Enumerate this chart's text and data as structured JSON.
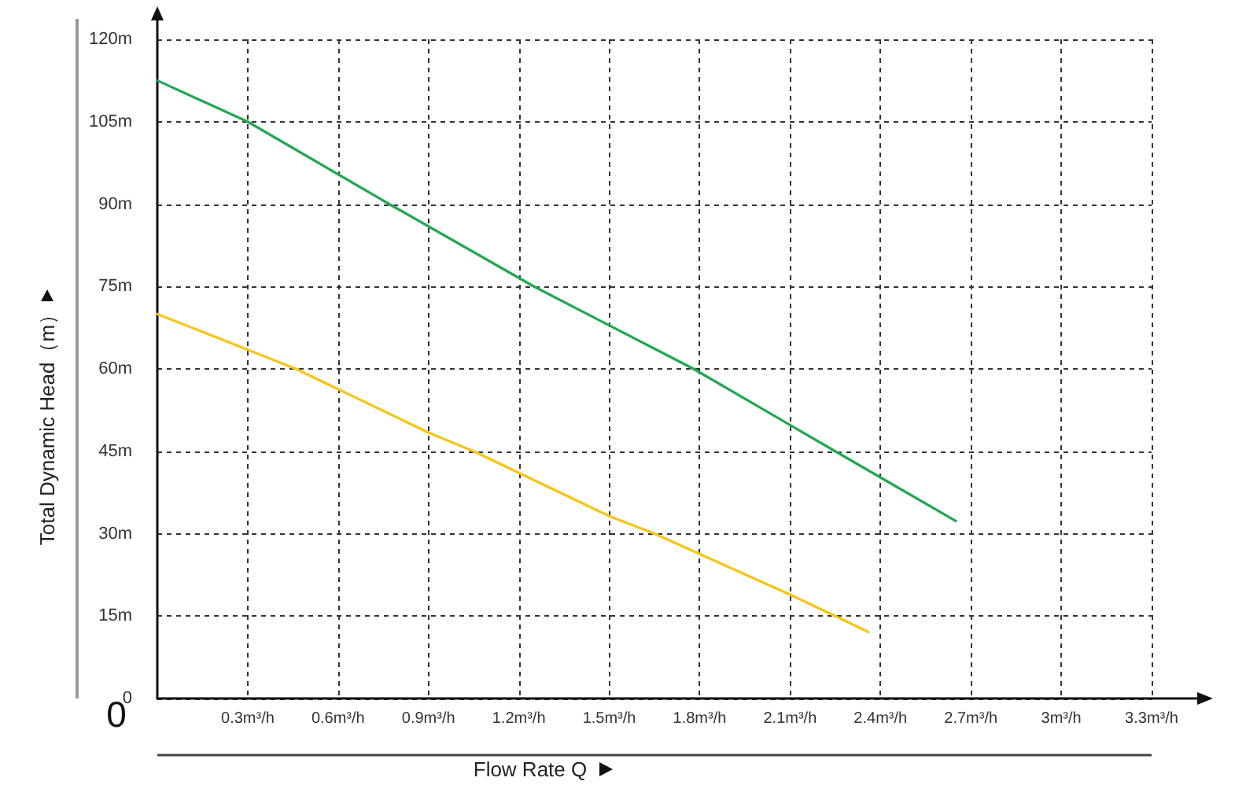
{
  "chart_data": {
    "type": "line",
    "ylabel": "Total Dynamic Head（m）",
    "xlabel": "Flow Rate Q",
    "annotations": [
      "0"
    ],
    "xlim": [
      0,
      3.3
    ],
    "xticks": [
      {
        "value": 0.3,
        "label": "0.3m³/h"
      },
      {
        "value": 0.6,
        "label": "0.6m³/h"
      },
      {
        "value": 0.9,
        "label": "0.9m³/h"
      },
      {
        "value": 1.2,
        "label": "1.2m³/h"
      },
      {
        "value": 1.5,
        "label": "1.5m³/h"
      },
      {
        "value": 1.8,
        "label": "1.8m³/h"
      },
      {
        "value": 2.1,
        "label": "2.1m³/h"
      },
      {
        "value": 2.4,
        "label": "2.4m³/h"
      },
      {
        "value": 2.7,
        "label": "2.7m³/h"
      },
      {
        "value": 3,
        "label": "3m³/h"
      },
      {
        "value": 3.3,
        "label": "3.3m³/h"
      }
    ],
    "ylim": [
      0,
      120
    ],
    "yticks": [
      0,
      {
        "value": 15,
        "label": "15m"
      },
      {
        "value": 30,
        "label": "30m"
      },
      {
        "value": 45,
        "label": "45m"
      },
      {
        "value": 60,
        "label": "60m"
      },
      {
        "value": 75,
        "label": "75m"
      },
      {
        "value": 90,
        "label": "90m"
      },
      {
        "value": 105,
        "label": "105m"
      },
      {
        "value": 120,
        "label": "120m"
      }
    ],
    "grid": true,
    "marker": "none",
    "line_style": "solid",
    "series": [
      {
        "color": "#22a652",
        "x": [
          0,
          0.3,
          0.77,
          1.25,
          1.78,
          2.25,
          2.65
        ],
        "values": [
          112.5,
          105,
          90,
          75,
          60,
          45,
          32.3
        ]
      },
      {
        "color": "#f5c518",
        "x": [
          0,
          0.46,
          0.9,
          1.05,
          1.5,
          1.65,
          2.1,
          2.25,
          2.36
        ],
        "values": [
          70,
          60,
          48.4,
          45,
          33.2,
          30,
          18.9,
          15,
          12.1
        ]
      }
    ]
  }
}
